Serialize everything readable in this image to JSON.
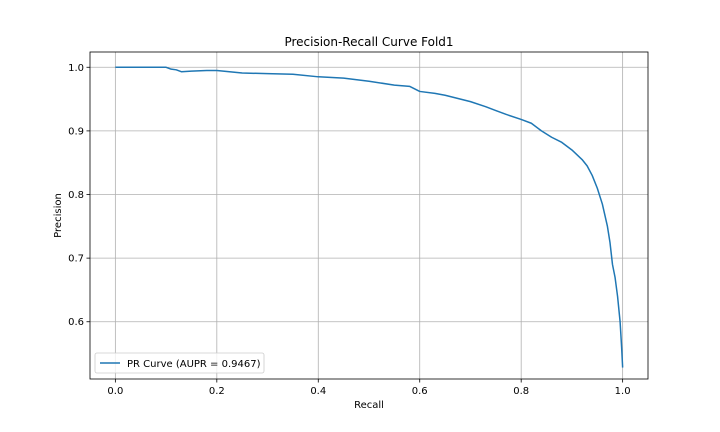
{
  "chart_data": {
    "type": "line",
    "title": "Precision-Recall Curve Fold1",
    "xlabel": "Recall",
    "ylabel": "Precision",
    "xlim": [
      -0.05,
      1.05
    ],
    "ylim": [
      0.51,
      1.024
    ],
    "x_ticks": [
      0.0,
      0.2,
      0.4,
      0.6,
      0.8,
      1.0
    ],
    "x_tick_labels": [
      "0.0",
      "0.2",
      "0.4",
      "0.6",
      "0.8",
      "1.0"
    ],
    "y_ticks": [
      0.6,
      0.7,
      0.8,
      0.9,
      1.0
    ],
    "y_tick_labels": [
      "0.6",
      "0.7",
      "0.8",
      "0.9",
      "1.0"
    ],
    "grid": true,
    "legend_position": "lower-left",
    "series": [
      {
        "name": "PR Curve (AUPR = 0.9467)",
        "color": "#1f77b4",
        "x": [
          0.0,
          0.05,
          0.1,
          0.11,
          0.12,
          0.13,
          0.15,
          0.18,
          0.2,
          0.25,
          0.3,
          0.35,
          0.4,
          0.45,
          0.5,
          0.55,
          0.58,
          0.6,
          0.63,
          0.65,
          0.7,
          0.73,
          0.75,
          0.77,
          0.8,
          0.82,
          0.84,
          0.86,
          0.88,
          0.9,
          0.92,
          0.93,
          0.94,
          0.95,
          0.96,
          0.97,
          0.975,
          0.98,
          0.985,
          0.99,
          0.995,
          0.998,
          1.0
        ],
        "y": [
          1.0,
          1.0,
          1.0,
          0.997,
          0.996,
          0.993,
          0.994,
          0.995,
          0.995,
          0.991,
          0.99,
          0.989,
          0.985,
          0.983,
          0.978,
          0.972,
          0.97,
          0.962,
          0.959,
          0.956,
          0.946,
          0.938,
          0.932,
          0.926,
          0.918,
          0.912,
          0.9,
          0.89,
          0.882,
          0.87,
          0.855,
          0.845,
          0.83,
          0.81,
          0.785,
          0.75,
          0.725,
          0.69,
          0.67,
          0.64,
          0.6,
          0.56,
          0.528
        ]
      }
    ]
  }
}
